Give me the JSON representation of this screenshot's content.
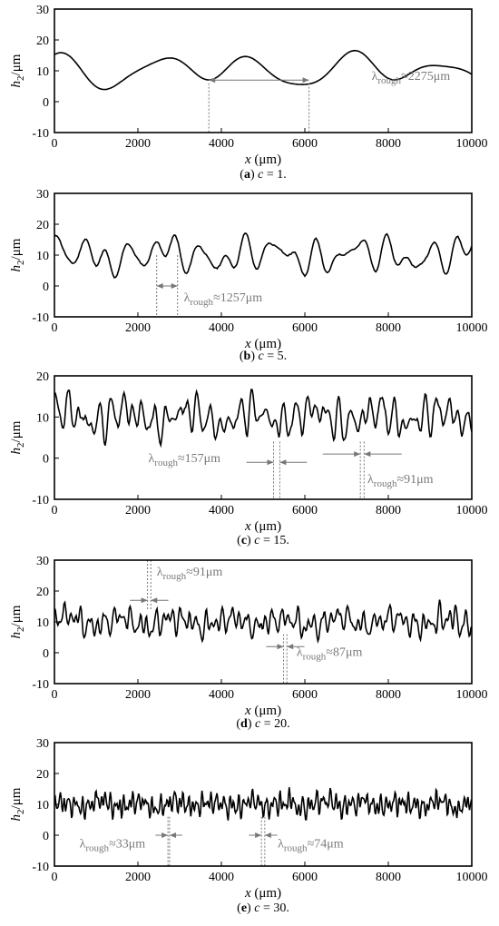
{
  "chart_data": [
    {
      "type": "line",
      "caption": {
        "letter": "a",
        "param": "c",
        "value": "1"
      },
      "ylabel": "h2/μm",
      "xlabel": "x (μm)",
      "xlim": [
        0,
        10000
      ],
      "ylim": [
        -10,
        30
      ],
      "xticks": [
        "0",
        "2000",
        "4000",
        "6000",
        "8000",
        "10000"
      ],
      "yticks": [
        "-10",
        "0",
        "10",
        "20",
        "30"
      ],
      "series": [
        {
          "seed": 3,
          "n": 240,
          "components": [
            {
              "a": 4.0,
              "wl": 2300,
              "ph": 1.1
            },
            {
              "a": 2.0,
              "wl": 4200,
              "ph": 2.6
            },
            {
              "a": 1.2,
              "wl": 1400,
              "ph": 0.4
            }
          ],
          "baseline": 10.2,
          "noise": 0.0,
          "smooth": 0
        }
      ],
      "annotations": [
        {
          "text": "≈2275μm",
          "x": 7600,
          "y": 7,
          "lines_x": [
            3700,
            6100
          ],
          "line_y": [
            -10,
            6
          ],
          "arrow": {
            "from": 3700,
            "to": 6100,
            "y": 7
          }
        }
      ]
    },
    {
      "type": "line",
      "caption": {
        "letter": "b",
        "param": "c",
        "value": "5"
      },
      "ylabel": "h2/μm",
      "xlabel": "x (μm)",
      "xlim": [
        0,
        10000
      ],
      "ylim": [
        -10,
        30
      ],
      "xticks": [
        "0",
        "2000",
        "4000",
        "6000",
        "8000",
        "10000"
      ],
      "yticks": [
        "-10",
        "0",
        "10",
        "20",
        "30"
      ],
      "series": [
        {
          "seed": 11,
          "n": 300,
          "components": [
            {
              "a": 3.2,
              "wl": 560,
              "ph": 0.3
            },
            {
              "a": 2.4,
              "wl": 900,
              "ph": 1.7
            },
            {
              "a": 1.8,
              "wl": 2400,
              "ph": 0.9
            },
            {
              "a": 1.6,
              "wl": 420,
              "ph": 2.2
            }
          ],
          "baseline": 10.0,
          "noise": 0.2,
          "smooth": 0
        }
      ],
      "annotations": [
        {
          "text": "≈1257μm",
          "x": 3100,
          "y": -5,
          "lines_x": [
            2450,
            2950
          ],
          "line_y": [
            -10,
            10
          ],
          "arrow": {
            "from": 2450,
            "to": 2950,
            "y": 0
          }
        }
      ]
    },
    {
      "type": "line",
      "caption": {
        "letter": "c",
        "param": "c",
        "value": "15"
      },
      "ylabel": "h2/μm",
      "xlabel": "x (μm)",
      "xlim": [
        0,
        10000
      ],
      "ylim": [
        -10,
        20
      ],
      "xticks": [
        "0",
        "2000",
        "4000",
        "6000",
        "8000",
        "10000"
      ],
      "yticks": [
        "-10",
        "0",
        "10",
        "20"
      ],
      "series": [
        {
          "seed": 23,
          "n": 420,
          "components": [
            {
              "a": 2.6,
              "wl": 260,
              "ph": 0.2
            },
            {
              "a": 2.2,
              "wl": 340,
              "ph": 1.4
            },
            {
              "a": 1.6,
              "wl": 190,
              "ph": 2.5
            },
            {
              "a": 1.6,
              "wl": 1500,
              "ph": 0.7
            }
          ],
          "baseline": 10.0,
          "noise": 1.6,
          "smooth": 1
        }
      ],
      "annotations": [
        {
          "text": "≈157μm",
          "x": 2250,
          "y": -1,
          "lines_x": [
            5250,
            5400
          ],
          "line_y": [
            -10,
            4
          ],
          "arrow_in": {
            "left": 5250,
            "right": 5400,
            "y": -1,
            "len": 650
          }
        },
        {
          "text": "≈91μm",
          "x": 7500,
          "y": -6,
          "lines_x": [
            7330,
            7420
          ],
          "line_y": [
            -10,
            4
          ],
          "arrow_in": {
            "left": 7330,
            "right": 7420,
            "y": 1,
            "len": 900
          }
        }
      ]
    },
    {
      "type": "line",
      "caption": {
        "letter": "d",
        "param": "c",
        "value": "20"
      },
      "ylabel": "h2/μm",
      "xlabel": "x (μm)",
      "xlim": [
        0,
        10000
      ],
      "ylim": [
        -10,
        30
      ],
      "xticks": [
        "0",
        "2000",
        "4000",
        "6000",
        "8000",
        "10000"
      ],
      "yticks": [
        "-10",
        "0",
        "10",
        "20",
        "30"
      ],
      "series": [
        {
          "seed": 37,
          "n": 480,
          "components": [
            {
              "a": 2.4,
              "wl": 200,
              "ph": 0.6
            },
            {
              "a": 2.0,
              "wl": 130,
              "ph": 1.9
            },
            {
              "a": 1.7,
              "wl": 310,
              "ph": 2.8
            },
            {
              "a": 1.3,
              "wl": 1300,
              "ph": 0.1
            }
          ],
          "baseline": 10.0,
          "noise": 2.0,
          "smooth": 1
        }
      ],
      "annotations": [
        {
          "text": "≈91μm",
          "x": 2450,
          "y": 25,
          "lines_x": [
            2230,
            2310
          ],
          "line_y": [
            14,
            30
          ],
          "arrow_in": {
            "left": 2230,
            "right": 2310,
            "y": 17,
            "len": 420
          }
        },
        {
          "text": "≈87μm",
          "x": 5800,
          "y": -1,
          "lines_x": [
            5490,
            5570
          ],
          "line_y": [
            -10,
            6
          ],
          "arrow_in": {
            "left": 5490,
            "right": 5570,
            "y": 2,
            "len": 420
          }
        }
      ]
    },
    {
      "type": "line",
      "caption": {
        "letter": "e",
        "param": "c",
        "value": "30"
      },
      "ylabel": "h2/μm",
      "xlabel": "x (μm)",
      "xlim": [
        0,
        10000
      ],
      "ylim": [
        -10,
        30
      ],
      "xticks": [
        "0",
        "2000",
        "4000",
        "6000",
        "8000",
        "10000"
      ],
      "yticks": [
        "-10",
        "0",
        "10",
        "20",
        "30"
      ],
      "series": [
        {
          "seed": 53,
          "n": 560,
          "components": [
            {
              "a": 2.2,
              "wl": 110,
              "ph": 0.5
            },
            {
              "a": 2.0,
              "wl": 75,
              "ph": 1.2
            },
            {
              "a": 1.6,
              "wl": 170,
              "ph": 2.1
            },
            {
              "a": 1.1,
              "wl": 900,
              "ph": 0.3
            }
          ],
          "baseline": 10.0,
          "noise": 2.2,
          "smooth": 1
        }
      ],
      "annotations": [
        {
          "text": "≈33μm",
          "x": 600,
          "y": -4,
          "lines_x": [
            2720,
            2760
          ],
          "line_y": [
            -10,
            6
          ],
          "arrow_in": {
            "left": 2720,
            "right": 2760,
            "y": 0,
            "len": 300
          }
        },
        {
          "text": "≈74μm",
          "x": 5350,
          "y": -4,
          "lines_x": [
            4960,
            5040
          ],
          "line_y": [
            -10,
            6
          ],
          "arrow_in": {
            "left": 4960,
            "right": 5040,
            "y": 0,
            "len": 300
          }
        }
      ]
    }
  ],
  "lambda_sub": "rough",
  "lambda_symbol": "λ"
}
